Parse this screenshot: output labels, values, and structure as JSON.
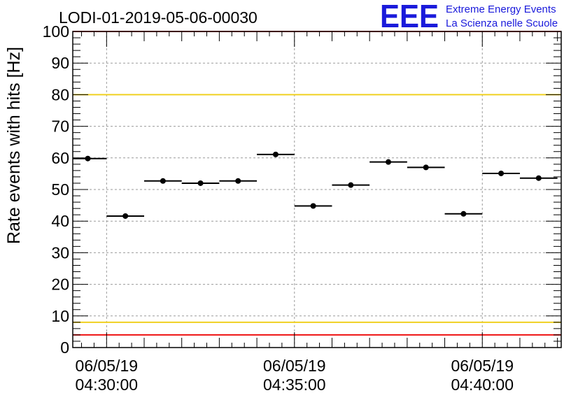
{
  "chart_data": {
    "type": "scatter",
    "title": "LODI-01-2019-05-06-00030",
    "ylabel": "Rate events with hits [Hz]",
    "xlabel": "",
    "ylim": [
      0,
      100
    ],
    "yticks": [
      "0",
      "10",
      "20",
      "30",
      "40",
      "50",
      "60",
      "70",
      "80",
      "90",
      "100"
    ],
    "xaxis": {
      "unit": "minutes",
      "range": [
        -0.9,
        12.1
      ],
      "major_ticks": [
        {
          "x": 0,
          "date": "06/05/19",
          "time": "04:30:00"
        },
        {
          "x": 5,
          "date": "06/05/19",
          "time": "04:35:00"
        },
        {
          "x": 10,
          "date": "06/05/19",
          "time": "04:40:00"
        }
      ]
    },
    "grid": true,
    "points": [
      {
        "x": -0.5,
        "y": 59.8,
        "xerr": 0.5
      },
      {
        "x": 0.5,
        "y": 41.6,
        "xerr": 0.5
      },
      {
        "x": 1.5,
        "y": 52.7,
        "xerr": 0.5
      },
      {
        "x": 2.5,
        "y": 52.0,
        "xerr": 0.5
      },
      {
        "x": 3.5,
        "y": 52.7,
        "xerr": 0.5
      },
      {
        "x": 4.5,
        "y": 61.1,
        "xerr": 0.5
      },
      {
        "x": 5.5,
        "y": 44.8,
        "xerr": 0.5
      },
      {
        "x": 6.5,
        "y": 51.4,
        "xerr": 0.5
      },
      {
        "x": 7.5,
        "y": 58.7,
        "xerr": 0.5
      },
      {
        "x": 8.5,
        "y": 57.0,
        "xerr": 0.5
      },
      {
        "x": 9.5,
        "y": 42.3,
        "xerr": 0.5
      },
      {
        "x": 10.5,
        "y": 55.1,
        "xerr": 0.5
      },
      {
        "x": 11.5,
        "y": 53.6,
        "xerr": 0.5
      }
    ],
    "reference_lines": [
      {
        "y": 100,
        "color": "#ee1111"
      },
      {
        "y": 80,
        "color": "#f0d020"
      },
      {
        "y": 8,
        "color": "#f0d020"
      },
      {
        "y": 4,
        "color": "#ee1111"
      }
    ]
  },
  "logo": {
    "mark": "EEE",
    "line1": "Extreme Energy Events",
    "line2": "La Scienza nelle Scuole",
    "color": "#1a1adb"
  }
}
